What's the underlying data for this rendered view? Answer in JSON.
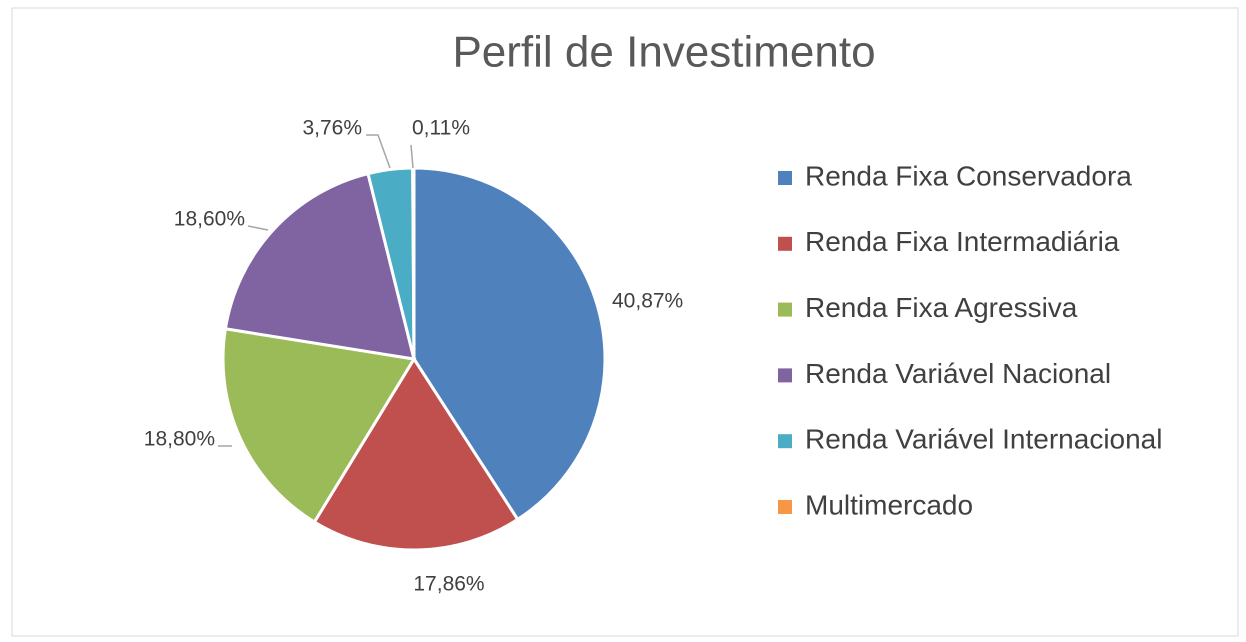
{
  "chart_data": {
    "type": "pie",
    "title": "Perfil de Investimento",
    "categories": [
      "Renda Fixa Conservadora",
      "Renda Fixa Intermadiária",
      "Renda Fixa Agressiva",
      "Renda Variável Nacional",
      "Renda Variável Internacional",
      "Multimercado"
    ],
    "values": [
      40.87,
      17.86,
      18.8,
      18.6,
      3.76,
      0.11
    ],
    "value_labels": [
      "40,87%",
      "17,86%",
      "18,80%",
      "18,60%",
      "3,76%",
      "0,11%"
    ],
    "colors": [
      "#4f81bd",
      "#c0504d",
      "#9bbb59",
      "#8064a2",
      "#4bacc6",
      "#f79646"
    ],
    "legend": "right"
  }
}
